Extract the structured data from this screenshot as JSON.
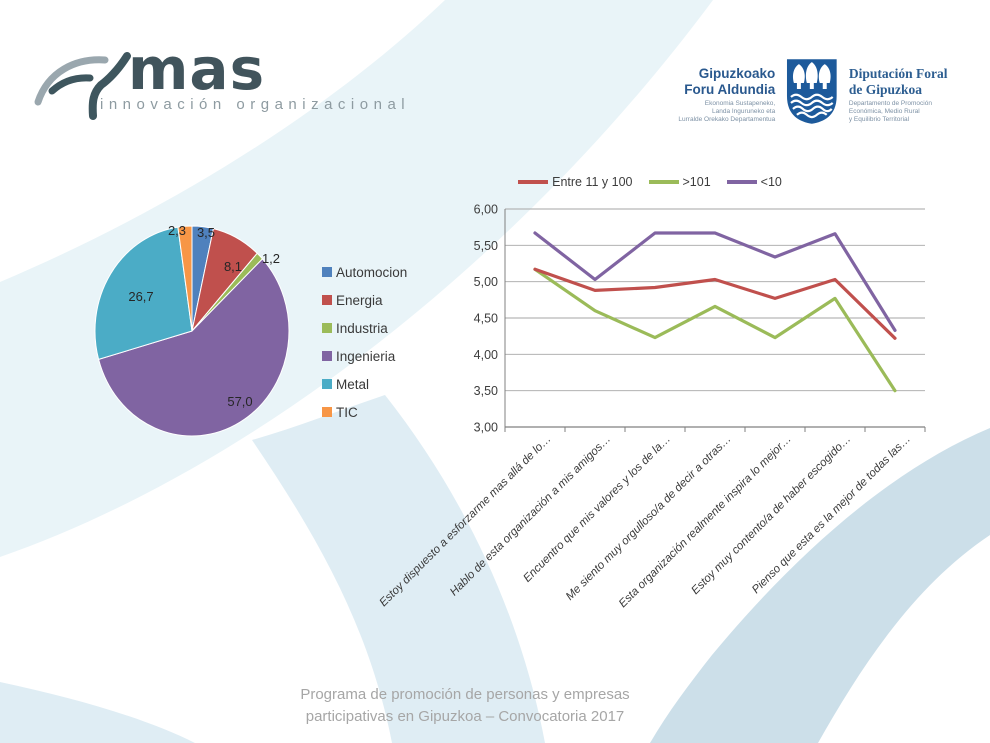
{
  "theme": {
    "mas_dark": "#41545c",
    "mas_gray": "#8e9ba1",
    "shield_blue": "#1d5a9b",
    "band_light": "#e9f4f8",
    "band_mid": "#dfedf4",
    "band_strong": "#ccdfe9",
    "footer_gray": "#a6a6a6",
    "grid_gray": "#a6a6a6",
    "axis_gray": "#808080"
  },
  "branding": {
    "logo_text": "mas",
    "logo_subtitle": "innovación organizacional"
  },
  "institution": {
    "left_title_1": "Gipuzkoako",
    "left_title_2": "Foru Aldundia",
    "left_sub": [
      "Ekonomia Sustapeneko,",
      "Landa Inguruneko eta",
      "Lurralde Orekako Departamentua"
    ],
    "right_title_1": "Diputación Foral",
    "right_title_2": "de Gipuzkoa",
    "right_sub": [
      "Departamento de Promoción",
      "Económica, Medio Rural",
      "y Equilibrio Territorial"
    ]
  },
  "chart_data": [
    {
      "type": "pie",
      "title": "",
      "categories": [
        "Automocion",
        "Energia",
        "Industria",
        "Ingenieria",
        "Metal",
        "TIC"
      ],
      "values": [
        3.5,
        8.1,
        1.2,
        57.0,
        26.7,
        2.3
      ],
      "labels": [
        "3,5",
        "8,1",
        "1,2",
        "57,0",
        "26,7",
        "2,3"
      ],
      "colors": [
        "#4f81bd",
        "#c0504d",
        "#9bbb59",
        "#8064a2",
        "#4bacc6",
        "#f79646"
      ],
      "legend_position": "right"
    },
    {
      "type": "line",
      "title": "",
      "categories": [
        "Estoy dispuesto a esforzarme mas allá de lo…",
        "Hablo de esta organización a mis amigos…",
        "Encuentro que mis valores y los de la…",
        "Me siento muy orgulloso/a de decir a otras…",
        "Esta organización realmente inspira lo mejor…",
        "Estoy muy contento/a de haber escogido…",
        "Pienso que esta es la mejor de todas las…"
      ],
      "series": [
        {
          "name": "Entre 11 y 100",
          "color": "#c0504d",
          "values": [
            5.17,
            4.88,
            4.92,
            5.03,
            4.77,
            5.03,
            4.22
          ]
        },
        {
          "name": ">101",
          "color": "#9bbb59",
          "values": [
            5.17,
            4.6,
            4.23,
            4.66,
            4.23,
            4.77,
            3.5
          ]
        },
        {
          "name": "<10",
          "color": "#8064a2",
          "values": [
            5.67,
            5.03,
            5.67,
            5.67,
            5.34,
            5.66,
            4.33
          ]
        }
      ],
      "ylim": [
        3.0,
        6.0
      ],
      "ytick_step": 0.5,
      "ytick_labels": [
        "6,00",
        "5,50",
        "5,00",
        "4,50",
        "4,00",
        "3,50",
        "3,00"
      ],
      "legend_position": "top",
      "grid": true
    }
  ],
  "footer": {
    "line1": "Programa de promoción de personas y empresas",
    "line2": "participativas en Gipuzkoa – Convocatoria 2017"
  }
}
